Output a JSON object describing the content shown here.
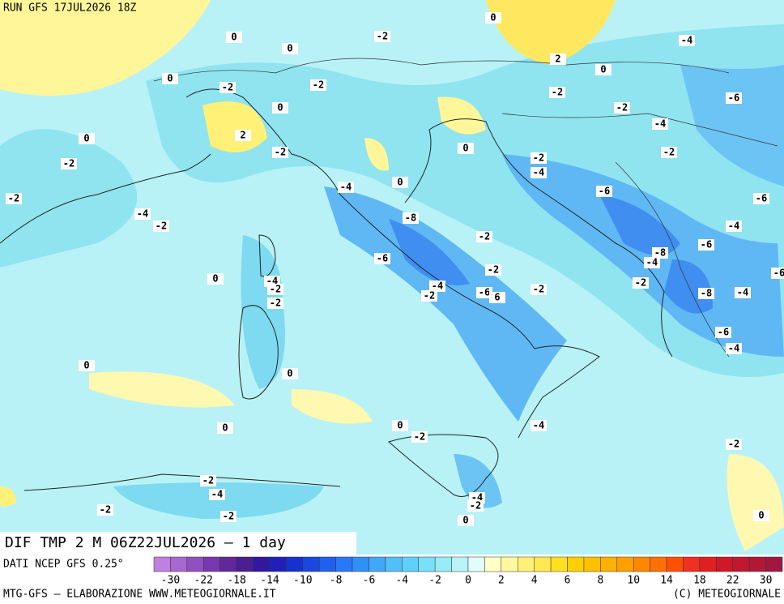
{
  "header": {
    "run": "RUN GFS 17JUL2026 18Z"
  },
  "map": {
    "contour_labels": [
      0,
      -2,
      0,
      0,
      -4,
      2,
      0,
      0,
      -2,
      -2,
      -2,
      -6,
      0,
      -2,
      -4,
      2,
      0,
      -2,
      -2,
      0,
      -2,
      -2,
      -4,
      0,
      -4,
      -6,
      -6,
      -2,
      -4,
      -8,
      -2,
      -4,
      -2,
      -6,
      -8,
      -4,
      -6,
      -2,
      0,
      -4,
      -2,
      -2,
      -2,
      -4,
      -2,
      -6,
      6,
      -8,
      -4,
      -2,
      -6,
      -4,
      0,
      0,
      0,
      0,
      -4,
      -2,
      -2,
      -2,
      -4,
      -4,
      -2,
      -2,
      -2,
      0,
      0,
      -6
    ]
  },
  "footer": {
    "field": "DIF TMP 2 M 06Z22JUL2026 – 1 day",
    "source": "DATI NCEP GFS 0.25°",
    "credit": "MTG-GFS – ELABORAZIONE WWW.METEOGIORNALE.IT",
    "copyright": "(C) METEOGIORNALE"
  },
  "colorbar": {
    "colors": [
      "#c080e0",
      "#a868d0",
      "#9050c0",
      "#7838b0",
      "#602898",
      "#482090",
      "#3018a0",
      "#2020b8",
      "#1830d0",
      "#1848e0",
      "#2060f0",
      "#2878f8",
      "#3090f8",
      "#40a8f8",
      "#50c0f8",
      "#60d0f8",
      "#78e0f8",
      "#98ecf8",
      "#b8f4f8",
      "#e0fcfc",
      "#ffffc8",
      "#fff8a0",
      "#fff078",
      "#ffe850",
      "#ffe020",
      "#ffd000",
      "#ffc000",
      "#ffb000",
      "#ffa000",
      "#ff8800",
      "#ff7000",
      "#ff5000",
      "#f03020",
      "#e02020",
      "#d01828",
      "#c01830",
      "#b01838",
      "#a01840"
    ],
    "labels": [
      -30,
      -22,
      -18,
      -14,
      -10,
      -8,
      -6,
      -4,
      -2,
      0,
      2,
      4,
      6,
      8,
      10,
      14,
      18,
      22,
      30
    ]
  }
}
